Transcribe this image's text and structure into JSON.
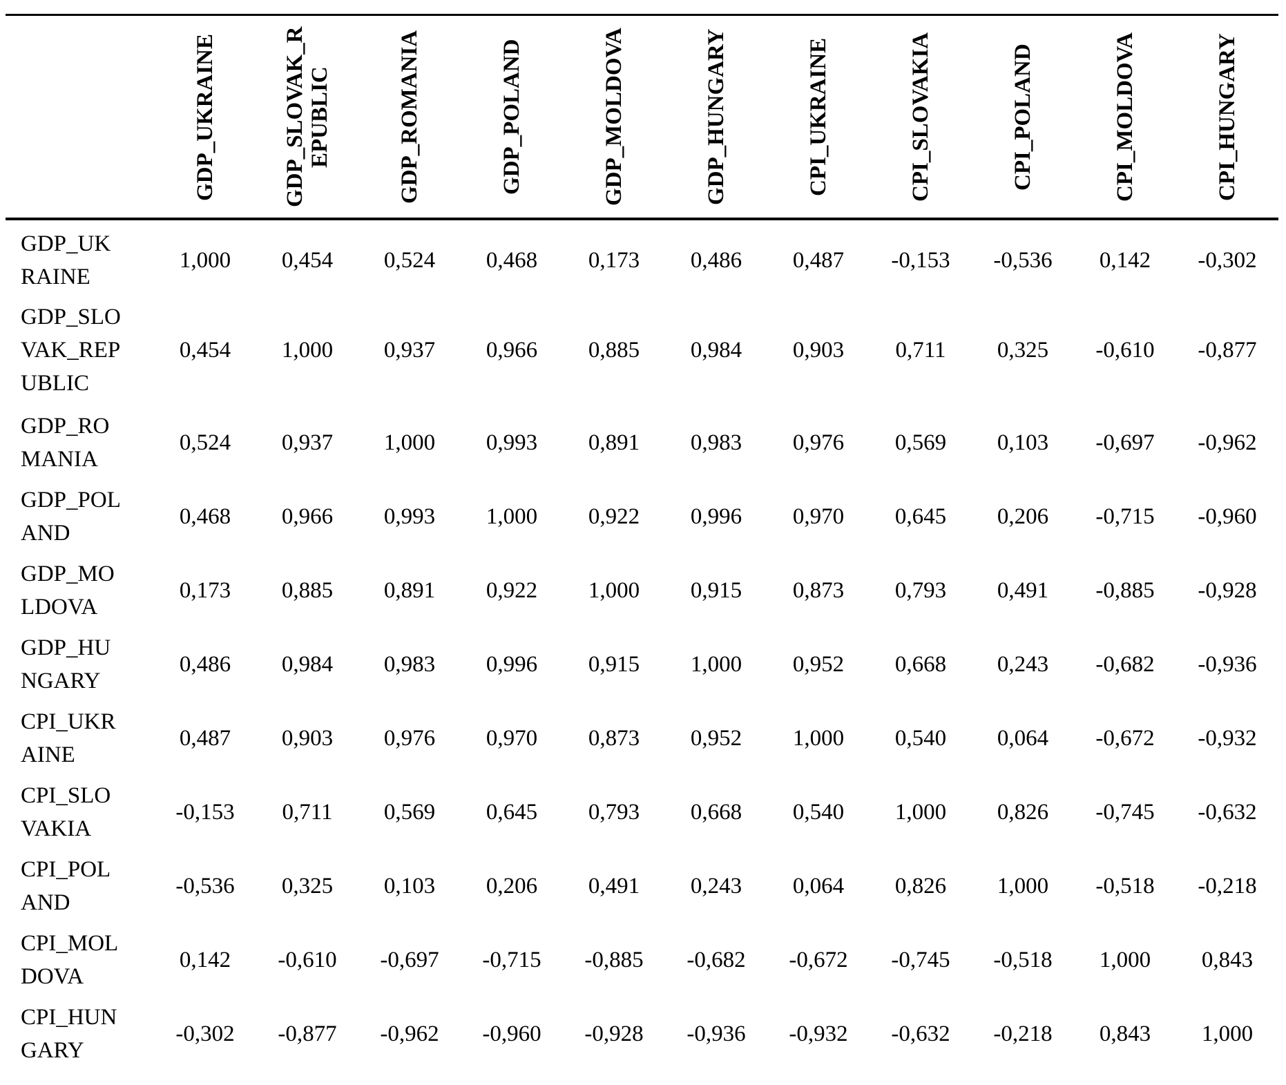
{
  "page": {
    "background_color": "#ffffff",
    "text_color": "#000000",
    "rule_color": "#000000"
  },
  "table": {
    "corner_label": "",
    "column_headers": [
      "GDP_UKRAINE",
      "GDP_SLOVAK_REPUBLIC",
      "GDP_ROMANIA",
      "GDP_POLAND",
      "GDP_MOLDOVA",
      "GDP_HUNGARY",
      "CPI_UKRAINE",
      "CPI_SLOVAKIA",
      "CPI_POLAND",
      "CPI_MOLDOVA",
      "CPI_HUNGARY"
    ],
    "rows": [
      {
        "label": "GDP_UKRAINE",
        "values": [
          "1,000",
          "0,454",
          "0,524",
          "0,468",
          "0,173",
          "0,486",
          "0,487",
          "-0,153",
          "-0,536",
          "0,142",
          "-0,302"
        ]
      },
      {
        "label": "GDP_SLOVAK_REPUBLIC",
        "values": [
          "0,454",
          "1,000",
          "0,937",
          "0,966",
          "0,885",
          "0,984",
          "0,903",
          "0,711",
          "0,325",
          "-0,610",
          "-0,877"
        ]
      },
      {
        "label": "GDP_ROMANIA",
        "values": [
          "0,524",
          "0,937",
          "1,000",
          "0,993",
          "0,891",
          "0,983",
          "0,976",
          "0,569",
          "0,103",
          "-0,697",
          "-0,962"
        ]
      },
      {
        "label": "GDP_POLAND",
        "values": [
          "0,468",
          "0,966",
          "0,993",
          "1,000",
          "0,922",
          "0,996",
          "0,970",
          "0,645",
          "0,206",
          "-0,715",
          "-0,960"
        ]
      },
      {
        "label": "GDP_MOLDOVA",
        "values": [
          "0,173",
          "0,885",
          "0,891",
          "0,922",
          "1,000",
          "0,915",
          "0,873",
          "0,793",
          "0,491",
          "-0,885",
          "-0,928"
        ]
      },
      {
        "label": "GDP_HUNGARY",
        "values": [
          "0,486",
          "0,984",
          "0,983",
          "0,996",
          "0,915",
          "1,000",
          "0,952",
          "0,668",
          "0,243",
          "-0,682",
          "-0,936"
        ]
      },
      {
        "label": "CPI_UKRAINE",
        "values": [
          "0,487",
          "0,903",
          "0,976",
          "0,970",
          "0,873",
          "0,952",
          "1,000",
          "0,540",
          "0,064",
          "-0,672",
          "-0,932"
        ]
      },
      {
        "label": "CPI_SLOVAKIA",
        "values": [
          "-0,153",
          "0,711",
          "0,569",
          "0,645",
          "0,793",
          "0,668",
          "0,540",
          "1,000",
          "0,826",
          "-0,745",
          "-0,632"
        ]
      },
      {
        "label": "CPI_POLAND",
        "values": [
          "-0,536",
          "0,325",
          "0,103",
          "0,206",
          "0,491",
          "0,243",
          "0,064",
          "0,826",
          "1,000",
          "-0,518",
          "-0,218"
        ]
      },
      {
        "label": "CPI_MOLDOVA",
        "values": [
          "0,142",
          "-0,610",
          "-0,697",
          "-0,715",
          "-0,885",
          "-0,682",
          "-0,672",
          "-0,745",
          "-0,518",
          "1,000",
          "0,843"
        ]
      },
      {
        "label": "CPI_HUNGARY",
        "values": [
          "-0,302",
          "-0,877",
          "-0,962",
          "-0,960",
          "-0,928",
          "-0,936",
          "-0,932",
          "-0,632",
          "-0,218",
          "0,843",
          "1,000"
        ]
      }
    ]
  }
}
